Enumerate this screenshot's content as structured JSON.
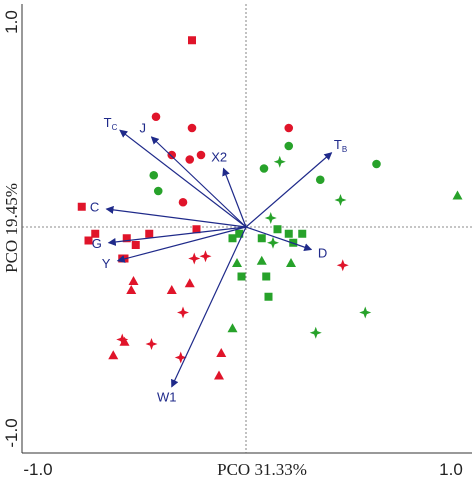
{
  "chart_data": {
    "type": "scatter",
    "xlabel": "PCO 31.33%",
    "ylabel": "PCO 19.45%",
    "xlim": [
      -1.0,
      1.0
    ],
    "ylim": [
      -1.0,
      1.0
    ],
    "x_ticks": [
      "-1.0",
      "1.0"
    ],
    "y_ticks": [
      "1.0",
      "-1.0"
    ],
    "grid": false,
    "reference_lines": "dotted lines at x=0 and y=0",
    "colors": {
      "red": "#e0142a",
      "green": "#27a22a",
      "vector": "#1f2a8a"
    },
    "series": [
      {
        "color": "red",
        "marker": "square",
        "points": [
          [
            -0.24,
            0.83
          ],
          [
            -0.73,
            0.09
          ],
          [
            -0.67,
            -0.03
          ],
          [
            -0.7,
            -0.06
          ],
          [
            -0.53,
            -0.05
          ],
          [
            -0.43,
            -0.03
          ],
          [
            -0.49,
            -0.08
          ],
          [
            -0.22,
            -0.01
          ],
          [
            -0.55,
            -0.14
          ],
          [
            -0.54,
            -0.14
          ]
        ]
      },
      {
        "color": "red",
        "marker": "circle",
        "points": [
          [
            -0.4,
            0.49
          ],
          [
            -0.33,
            0.32
          ],
          [
            -0.24,
            0.44
          ],
          [
            -0.25,
            0.3
          ],
          [
            -0.2,
            0.32
          ],
          [
            -0.28,
            0.11
          ],
          [
            0.19,
            0.44
          ]
        ]
      },
      {
        "color": "red",
        "marker": "triangle",
        "points": [
          [
            -0.5,
            -0.24
          ],
          [
            -0.51,
            -0.28
          ],
          [
            -0.25,
            -0.25
          ],
          [
            -0.33,
            -0.28
          ],
          [
            -0.54,
            -0.51
          ],
          [
            -0.59,
            -0.57
          ],
          [
            -0.11,
            -0.56
          ],
          [
            -0.12,
            -0.66
          ]
        ]
      },
      {
        "color": "red",
        "marker": "star4",
        "points": [
          [
            -0.23,
            -0.14
          ],
          [
            -0.18,
            -0.13
          ],
          [
            -0.55,
            -0.5
          ],
          [
            -0.42,
            -0.52
          ],
          [
            -0.28,
            -0.38
          ],
          [
            -0.29,
            -0.58
          ],
          [
            0.43,
            -0.17
          ]
        ]
      },
      {
        "color": "green",
        "marker": "square",
        "points": [
          [
            -0.06,
            -0.05
          ],
          [
            -0.03,
            -0.03
          ],
          [
            0.07,
            -0.05
          ],
          [
            0.14,
            -0.01
          ],
          [
            0.21,
            -0.07
          ],
          [
            0.19,
            -0.03
          ],
          [
            0.25,
            -0.03
          ],
          [
            -0.02,
            -0.22
          ],
          [
            0.09,
            -0.22
          ],
          [
            0.1,
            -0.31
          ]
        ]
      },
      {
        "color": "green",
        "marker": "circle",
        "points": [
          [
            -0.41,
            0.23
          ],
          [
            -0.39,
            0.16
          ],
          [
            0.08,
            0.26
          ],
          [
            0.19,
            0.36
          ],
          [
            0.33,
            0.21
          ],
          [
            0.58,
            0.28
          ]
        ]
      },
      {
        "color": "green",
        "marker": "triangle",
        "points": [
          [
            -0.04,
            -0.16
          ],
          [
            0.07,
            -0.15
          ],
          [
            0.2,
            -0.16
          ],
          [
            -0.06,
            -0.45
          ],
          [
            0.94,
            0.14
          ]
        ]
      },
      {
        "color": "green",
        "marker": "star4",
        "points": [
          [
            0.15,
            0.29
          ],
          [
            0.11,
            0.04
          ],
          [
            0.12,
            -0.07
          ],
          [
            0.42,
            0.12
          ],
          [
            0.53,
            -0.38
          ],
          [
            0.31,
            -0.47
          ]
        ]
      }
    ],
    "vectors": [
      {
        "label": "T",
        "sub": "C",
        "x": -0.56,
        "y": 0.43
      },
      {
        "label": "J",
        "x": -0.42,
        "y": 0.4
      },
      {
        "label": "X2",
        "x": -0.1,
        "y": 0.26
      },
      {
        "label": "T",
        "sub": "B",
        "x": 0.38,
        "y": 0.33
      },
      {
        "label": "C",
        "x": -0.62,
        "y": 0.08
      },
      {
        "label": "G",
        "x": -0.61,
        "y": -0.07
      },
      {
        "label": "Y",
        "x": -0.57,
        "y": -0.15
      },
      {
        "label": "D",
        "x": 0.29,
        "y": -0.1
      },
      {
        "label": "W1",
        "x": -0.33,
        "y": -0.71
      }
    ]
  }
}
